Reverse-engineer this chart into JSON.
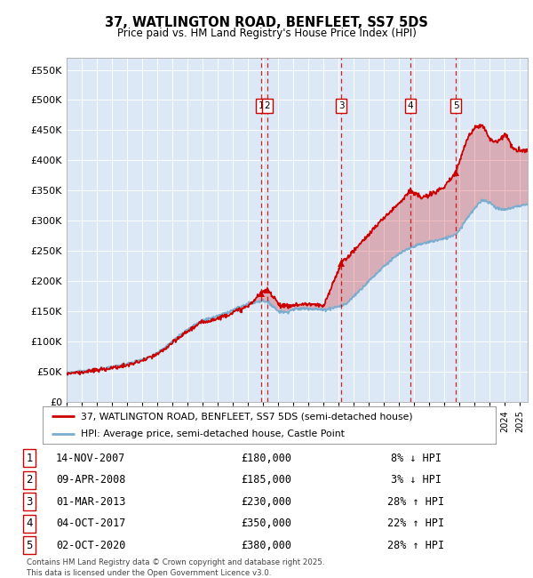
{
  "title": "37, WATLINGTON ROAD, BENFLEET, SS7 5DS",
  "subtitle": "Price paid vs. HM Land Registry's House Price Index (HPI)",
  "ylabel_ticks": [
    "£0",
    "£50K",
    "£100K",
    "£150K",
    "£200K",
    "£250K",
    "£300K",
    "£350K",
    "£400K",
    "£450K",
    "£500K",
    "£550K"
  ],
  "ytick_values": [
    0,
    50000,
    100000,
    150000,
    200000,
    250000,
    300000,
    350000,
    400000,
    450000,
    500000,
    550000
  ],
  "ylim": [
    0,
    570000
  ],
  "xlim_start": 1995.0,
  "xlim_end": 2025.5,
  "transactions": [
    {
      "num": 1,
      "date": "14-NOV-2007",
      "year": 2007.87,
      "price": 180000,
      "pct": "8%",
      "dir": "↓"
    },
    {
      "num": 2,
      "date": "09-APR-2008",
      "year": 2008.27,
      "price": 185000,
      "pct": "3%",
      "dir": "↓"
    },
    {
      "num": 3,
      "date": "01-MAR-2013",
      "year": 2013.17,
      "price": 230000,
      "pct": "28%",
      "dir": "↑"
    },
    {
      "num": 4,
      "date": "04-OCT-2017",
      "year": 2017.75,
      "price": 350000,
      "pct": "22%",
      "dir": "↑"
    },
    {
      "num": 5,
      "date": "02-OCT-2020",
      "year": 2020.75,
      "price": 380000,
      "pct": "28%",
      "dir": "↑"
    }
  ],
  "legend_address": "37, WATLINGTON ROAD, BENFLEET, SS7 5DS (semi-detached house)",
  "legend_hpi": "HPI: Average price, semi-detached house, Castle Point",
  "red_color": "#cc0000",
  "blue_color": "#7aadcf",
  "footnote": "Contains HM Land Registry data © Crown copyright and database right 2025.\nThis data is licensed under the Open Government Licence v3.0.",
  "plot_bg": "#dce8f5",
  "hpi_anchors": [
    [
      1995.0,
      48000
    ],
    [
      1996.0,
      50000
    ],
    [
      1997.0,
      53000
    ],
    [
      1998.0,
      57000
    ],
    [
      1999.0,
      62000
    ],
    [
      2000.0,
      70000
    ],
    [
      2001.0,
      80000
    ],
    [
      2002.0,
      100000
    ],
    [
      2003.0,
      120000
    ],
    [
      2004.0,
      135000
    ],
    [
      2005.0,
      142000
    ],
    [
      2006.0,
      152000
    ],
    [
      2007.0,
      162000
    ],
    [
      2008.0,
      168000
    ],
    [
      2008.5,
      162000
    ],
    [
      2009.0,
      150000
    ],
    [
      2009.5,
      148000
    ],
    [
      2010.0,
      153000
    ],
    [
      2011.0,
      155000
    ],
    [
      2012.0,
      152000
    ],
    [
      2013.0,
      158000
    ],
    [
      2013.5,
      162000
    ],
    [
      2014.0,
      175000
    ],
    [
      2015.0,
      200000
    ],
    [
      2016.0,
      225000
    ],
    [
      2017.0,
      245000
    ],
    [
      2017.75,
      255000
    ],
    [
      2018.0,
      258000
    ],
    [
      2019.0,
      265000
    ],
    [
      2020.0,
      270000
    ],
    [
      2020.75,
      278000
    ],
    [
      2021.0,
      285000
    ],
    [
      2021.5,
      305000
    ],
    [
      2022.0,
      320000
    ],
    [
      2022.5,
      335000
    ],
    [
      2023.0,
      330000
    ],
    [
      2023.5,
      320000
    ],
    [
      2024.0,
      318000
    ],
    [
      2024.5,
      322000
    ],
    [
      2025.0,
      325000
    ],
    [
      2025.5,
      327000
    ]
  ],
  "red_anchors": [
    [
      1995.0,
      47000
    ],
    [
      1996.0,
      49000
    ],
    [
      1997.0,
      52000
    ],
    [
      1998.0,
      56000
    ],
    [
      1999.0,
      60000
    ],
    [
      2000.0,
      68000
    ],
    [
      2001.0,
      78000
    ],
    [
      2002.0,
      97000
    ],
    [
      2003.0,
      117000
    ],
    [
      2004.0,
      132000
    ],
    [
      2005.0,
      138000
    ],
    [
      2006.0,
      148000
    ],
    [
      2007.0,
      158000
    ],
    [
      2007.87,
      180000
    ],
    [
      2008.27,
      185000
    ],
    [
      2008.8,
      172000
    ],
    [
      2009.0,
      162000
    ],
    [
      2009.5,
      158000
    ],
    [
      2010.0,
      160000
    ],
    [
      2011.0,
      162000
    ],
    [
      2012.0,
      158000
    ],
    [
      2013.17,
      230000
    ],
    [
      2014.0,
      250000
    ],
    [
      2015.0,
      278000
    ],
    [
      2016.0,
      305000
    ],
    [
      2017.0,
      330000
    ],
    [
      2017.75,
      350000
    ],
    [
      2018.0,
      345000
    ],
    [
      2018.5,
      338000
    ],
    [
      2019.0,
      342000
    ],
    [
      2019.5,
      350000
    ],
    [
      2020.0,
      355000
    ],
    [
      2020.75,
      380000
    ],
    [
      2021.0,
      400000
    ],
    [
      2021.5,
      435000
    ],
    [
      2022.0,
      455000
    ],
    [
      2022.5,
      460000
    ],
    [
      2023.0,
      435000
    ],
    [
      2023.5,
      430000
    ],
    [
      2024.0,
      445000
    ],
    [
      2024.5,
      420000
    ],
    [
      2025.0,
      415000
    ],
    [
      2025.5,
      418000
    ]
  ]
}
